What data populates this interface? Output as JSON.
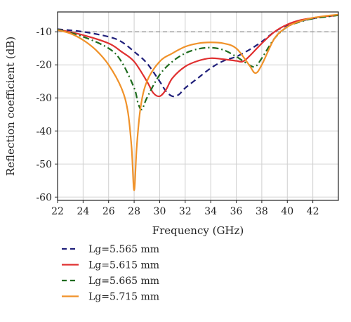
{
  "chart_data": {
    "type": "line",
    "xlabel": "Frequency (GHz)",
    "ylabel": "Reflection coefficient (dB)",
    "xlim": [
      22,
      44
    ],
    "ylim": [
      -61,
      -4
    ],
    "x_ticks": [
      "22",
      "24",
      "26",
      "28",
      "30",
      "32",
      "34",
      "36",
      "38",
      "40",
      "42"
    ],
    "y_ticks": [
      "-10",
      "-20",
      "-30",
      "-40",
      "-50",
      "-60"
    ],
    "grid": true,
    "reference_line": {
      "y": -10,
      "style": "dashed",
      "color": "#9a9a9a"
    },
    "legend_position": "bottom",
    "series": [
      {
        "name": "Lg=5.565 mm",
        "color": "#1f1f7a",
        "dash": "dashed",
        "x": [
          22,
          24,
          26,
          27,
          28,
          29,
          30,
          30.5,
          31,
          31.5,
          32,
          33,
          34,
          35,
          36,
          37,
          38,
          39,
          40,
          41,
          42,
          43,
          44
        ],
        "y": [
          -9.2,
          -10,
          -11.5,
          -13,
          -16,
          -19.5,
          -25,
          -28,
          -29.5,
          -29,
          -27,
          -24,
          -21,
          -18.8,
          -17.5,
          -15.5,
          -13,
          -10,
          -8,
          -6.8,
          -6,
          -5.4,
          -5
        ]
      },
      {
        "name": "Lg=5.615 mm",
        "color": "#e03030",
        "dash": "solid",
        "x": [
          22,
          24,
          26,
          27,
          28,
          29,
          29.5,
          30,
          30.5,
          31,
          32,
          33,
          34,
          35,
          36,
          36.5,
          37,
          38,
          39,
          40,
          41,
          42,
          43,
          44
        ],
        "y": [
          -9.3,
          -11,
          -13.5,
          -16,
          -19,
          -25,
          -28.5,
          -29.5,
          -27.5,
          -24,
          -20.5,
          -18.8,
          -18,
          -18.3,
          -18.8,
          -19,
          -17.5,
          -13.5,
          -10,
          -7.8,
          -6.5,
          -5.8,
          -5.3,
          -5
        ]
      },
      {
        "name": "Lg=5.665 mm",
        "color": "#1e6b1e",
        "dash": "dashdot",
        "x": [
          22,
          24,
          26,
          27,
          28,
          28.3,
          28.6,
          29,
          30,
          31,
          32,
          33,
          34,
          35,
          36,
          37,
          37.5,
          38,
          39,
          40,
          41,
          42,
          43,
          44
        ],
        "y": [
          -9.3,
          -11.5,
          -15,
          -19,
          -27,
          -31.5,
          -33.5,
          -30,
          -23,
          -19,
          -16.5,
          -15.2,
          -14.8,
          -15.5,
          -17.5,
          -20,
          -20.5,
          -18,
          -12,
          -8.5,
          -7,
          -6,
          -5.5,
          -5
        ]
      },
      {
        "name": "Lg=5.715 mm",
        "color": "#f0922a",
        "dash": "solid",
        "x": [
          22,
          23,
          24,
          25,
          26,
          27,
          27.5,
          27.8,
          28,
          28.2,
          28.5,
          29,
          30,
          31,
          32,
          33,
          34,
          35,
          36,
          37,
          37.5,
          38,
          39,
          40,
          41,
          42,
          43,
          44
        ],
        "y": [
          -9.5,
          -10.5,
          -12.5,
          -15.5,
          -20,
          -27,
          -34,
          -45,
          -58,
          -45,
          -33,
          -25,
          -19,
          -16.5,
          -14.5,
          -13.5,
          -13.2,
          -13.5,
          -15,
          -20,
          -22.5,
          -20,
          -12,
          -8.5,
          -6.8,
          -5.8,
          -5.2,
          -4.8
        ]
      }
    ]
  }
}
